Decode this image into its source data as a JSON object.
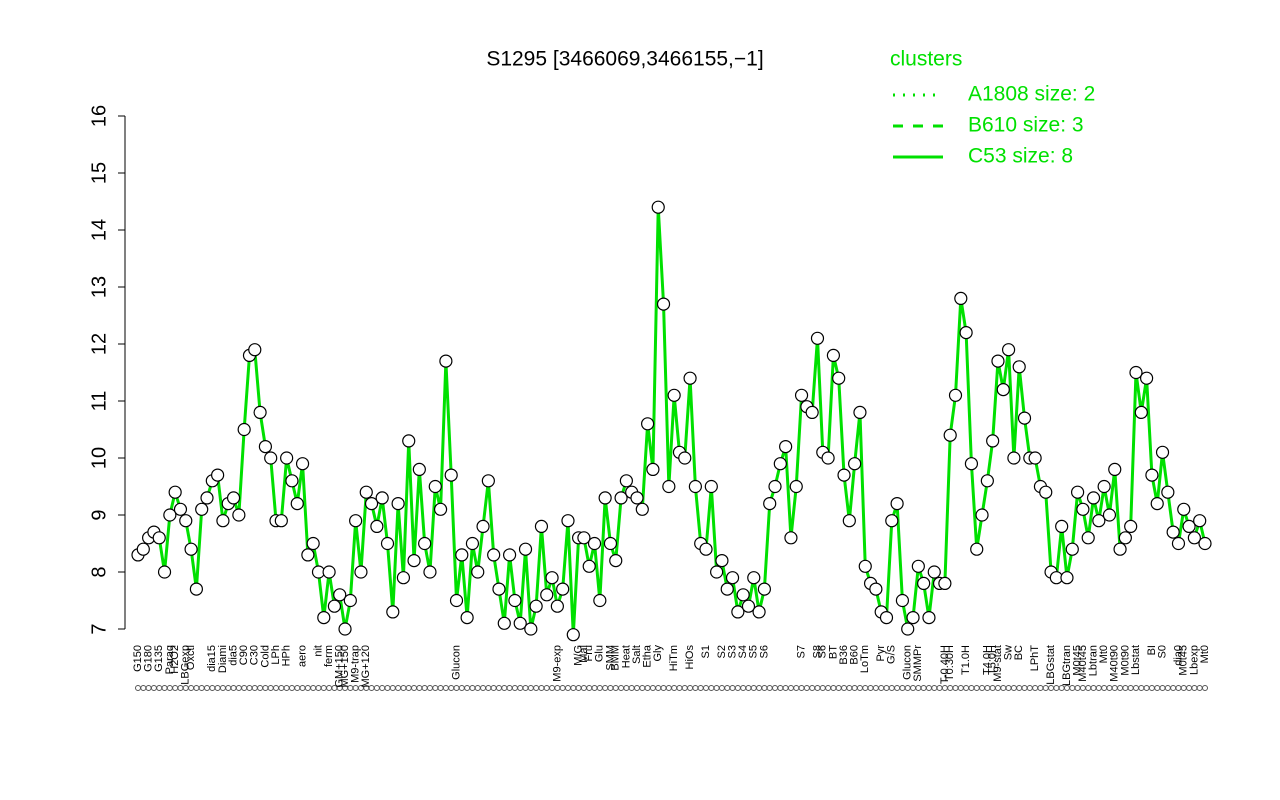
{
  "chart_data": {
    "type": "line",
    "title": "S1295 [3466069,3466155,−1]",
    "categories": [
      "G150",
      null,
      "G180",
      null,
      "G135",
      null,
      "Paraq",
      "H2O2",
      null,
      "LBGexp",
      "Oxctl",
      null,
      null,
      null,
      "dia15",
      null,
      "Diami",
      null,
      "dia5",
      null,
      "C90",
      null,
      "C30",
      null,
      "Cold",
      null,
      "LPh",
      null,
      "HPh",
      null,
      null,
      "aero",
      null,
      null,
      "nit",
      null,
      "ferm",
      null,
      "GM+150",
      "MG+150",
      null,
      "M9-trap",
      null,
      "MG+120",
      null,
      null,
      null,
      null,
      null,
      null,
      null,
      null,
      null,
      null,
      null,
      null,
      null,
      null,
      null,
      null,
      "Glucon",
      null,
      null,
      null,
      null,
      null,
      null,
      null,
      null,
      null,
      null,
      null,
      null,
      null,
      null,
      null,
      null,
      null,
      null,
      "M9-exp",
      null,
      null,
      null,
      "M/G",
      "Mal",
      "Fru",
      null,
      "Glu",
      null,
      "SMM",
      "BMM",
      null,
      "Heat",
      null,
      "Salt",
      null,
      "Etha",
      null,
      "Gly",
      null,
      null,
      "HiTm",
      null,
      null,
      "HiOs",
      null,
      null,
      "S1",
      null,
      null,
      "S2",
      null,
      "S3",
      null,
      "S4",
      null,
      "S5",
      null,
      "S6",
      null,
      null,
      null,
      null,
      null,
      null,
      "S7",
      null,
      null,
      "S8",
      "S6",
      null,
      "BT",
      null,
      "B36",
      null,
      "B60",
      null,
      "LoTm",
      null,
      null,
      "Pyr",
      null,
      "G/S",
      null,
      null,
      "Glucon",
      null,
      "SMMPr",
      null,
      null,
      null,
      null,
      "T-0.40H",
      "T0.30H",
      null,
      null,
      "T1.0H",
      null,
      null,
      null,
      "T4.0H",
      "T5.0H",
      "M9-stat",
      null,
      "Sw",
      null,
      "BC",
      null,
      null,
      "LPhT",
      null,
      null,
      "LBGstat",
      null,
      null,
      "LBGtran",
      null,
      "M0t45",
      "M40t45",
      null,
      "Lbtran",
      null,
      "Mt0",
      null,
      "M40t90",
      null,
      "M0t90",
      null,
      "Lbstat",
      null,
      null,
      "BI",
      null,
      "S0",
      null,
      null,
      "dia0",
      "M0t45",
      null,
      "Lbexp",
      null,
      "Mt0"
    ],
    "values": [
      8.3,
      8.4,
      8.6,
      8.7,
      8.6,
      8.0,
      9.0,
      9.4,
      9.1,
      8.9,
      8.4,
      7.7,
      9.1,
      9.3,
      9.6,
      9.7,
      8.9,
      9.2,
      9.3,
      9.0,
      10.5,
      11.8,
      11.9,
      10.8,
      10.2,
      10.0,
      8.9,
      8.9,
      10.0,
      9.6,
      9.2,
      9.9,
      8.3,
      8.5,
      8.0,
      7.2,
      8.0,
      7.4,
      7.6,
      7.0,
      7.5,
      8.9,
      8.0,
      9.4,
      9.2,
      8.8,
      9.3,
      8.5,
      7.3,
      9.2,
      7.9,
      10.3,
      8.2,
      9.8,
      8.5,
      8.0,
      9.5,
      9.1,
      11.7,
      9.7,
      7.5,
      8.3,
      7.2,
      8.5,
      8.0,
      8.8,
      9.6,
      8.3,
      7.7,
      7.1,
      8.3,
      7.5,
      7.1,
      8.4,
      7.0,
      7.4,
      8.8,
      7.6,
      7.9,
      7.4,
      7.7,
      8.9,
      6.9,
      8.6,
      8.6,
      8.1,
      8.5,
      7.5,
      9.3,
      8.5,
      8.2,
      9.3,
      9.6,
      9.4,
      9.3,
      9.1,
      10.6,
      9.8,
      14.4,
      12.7,
      9.5,
      11.1,
      10.1,
      10.0,
      11.4,
      9.5,
      8.5,
      8.4,
      9.5,
      8.0,
      8.2,
      7.7,
      7.9,
      7.3,
      7.6,
      7.4,
      7.9,
      7.3,
      7.7,
      9.2,
      9.5,
      9.9,
      10.2,
      8.6,
      9.5,
      11.1,
      10.9,
      10.8,
      12.1,
      10.1,
      10.0,
      11.8,
      11.4,
      9.7,
      8.9,
      9.9,
      10.8,
      8.1,
      7.8,
      7.7,
      7.3,
      7.2,
      8.9,
      9.2,
      7.5,
      7.0,
      7.2,
      8.1,
      7.8,
      7.2,
      8.0,
      7.8,
      7.8,
      10.4,
      11.1,
      12.8,
      12.2,
      9.9,
      8.4,
      9.0,
      9.6,
      10.3,
      11.7,
      11.2,
      11.9,
      10.0,
      11.6,
      10.7,
      10.0,
      10.0,
      9.5,
      9.4,
      8.0,
      7.9,
      8.8,
      7.9,
      8.4,
      9.4,
      9.1,
      8.6,
      9.3,
      8.9,
      9.5,
      9.0,
      9.8,
      8.4,
      8.6,
      8.8,
      11.5,
      10.8,
      11.4,
      9.7,
      9.2,
      10.1,
      9.4,
      8.7,
      8.5,
      9.1,
      8.8,
      8.6,
      8.9,
      8.5
    ],
    "line_color": "#00e000",
    "marker_fill": "#ffffff",
    "marker_stroke": "#000000",
    "ylim": [
      7,
      16
    ],
    "yticks": [
      7,
      8,
      9,
      10,
      11,
      12,
      13,
      14,
      15,
      16
    ],
    "legend": {
      "title": "clusters",
      "color": "#00e000",
      "entries": [
        {
          "name": "A1808 size: 2",
          "dash": "dotted"
        },
        {
          "name": "B610 size: 3",
          "dash": "dashed"
        },
        {
          "name": "C53 size: 8",
          "dash": "solid"
        }
      ]
    }
  }
}
